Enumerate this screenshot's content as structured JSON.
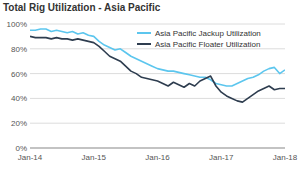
{
  "chart_data": {
    "type": "line",
    "title": "Total Rig Utilization - Asia Pacific",
    "categories": [
      "Jan-14",
      null,
      null,
      null,
      null,
      null,
      null,
      null,
      null,
      null,
      null,
      null,
      "Jan-15",
      null,
      null,
      null,
      null,
      null,
      null,
      null,
      null,
      null,
      null,
      null,
      "Jan-16",
      null,
      null,
      null,
      null,
      null,
      null,
      null,
      null,
      null,
      null,
      null,
      "Jan-17",
      null,
      null,
      null,
      null,
      null,
      null,
      null,
      null,
      null,
      null,
      null,
      "Jan-18"
    ],
    "series": [
      {
        "name": "Asia Pacific Jackup Utilization",
        "color": "#5cc6ee",
        "values": [
          95,
          95,
          96,
          96,
          94,
          95,
          94,
          93,
          94,
          92,
          93,
          91,
          90,
          86,
          83,
          81,
          79,
          80,
          77,
          74,
          72,
          70,
          68,
          66,
          64,
          63,
          62,
          62,
          61,
          60,
          59,
          58,
          57,
          57,
          55,
          52,
          51,
          50,
          50,
          52,
          54,
          56,
          57,
          59,
          62,
          64,
          65,
          60,
          63
        ]
      },
      {
        "name": "Asia Pacific Floater Utilization",
        "color": "#2e3d4f",
        "values": [
          90,
          89,
          89,
          89,
          88,
          89,
          88,
          88,
          87,
          88,
          87,
          86,
          85,
          82,
          78,
          74,
          72,
          70,
          66,
          62,
          60,
          57,
          56,
          55,
          54,
          52,
          50,
          53,
          51,
          49,
          52,
          50,
          54,
          56,
          58,
          50,
          45,
          42,
          40,
          38,
          37,
          40,
          43,
          46,
          48,
          50,
          47,
          48,
          48
        ]
      }
    ],
    "ylim": [
      0,
      100
    ],
    "yticks": [
      {
        "value": 0,
        "label": "0%"
      },
      {
        "value": 20,
        "label": "20%"
      },
      {
        "value": 40,
        "label": "40%"
      },
      {
        "value": 60,
        "label": "60%"
      },
      {
        "value": 80,
        "label": "80%"
      },
      {
        "value": 100,
        "label": "100%"
      }
    ],
    "grid": true,
    "legend": "upper right"
  }
}
